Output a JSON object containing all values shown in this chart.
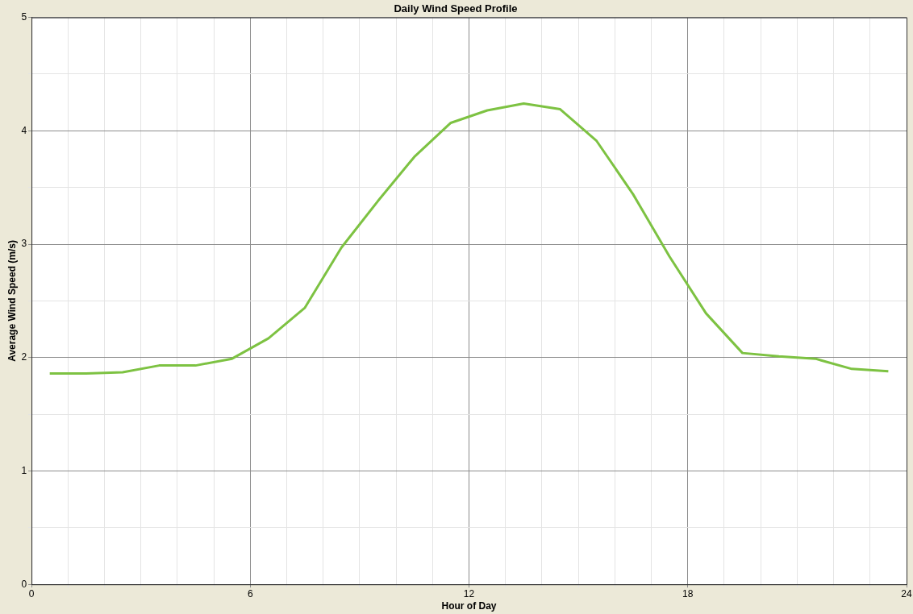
{
  "chart_data": {
    "type": "line",
    "title": "Daily Wind Speed Profile",
    "xlabel": "Hour of Day",
    "ylabel": "Average Wind Speed (m/s)",
    "x": [
      0.5,
      1.5,
      2.5,
      3.5,
      4.5,
      5.5,
      6.5,
      7.5,
      8.5,
      9.5,
      10.5,
      11.5,
      12.5,
      13.5,
      14.5,
      15.5,
      16.5,
      17.5,
      18.5,
      19.5,
      20.5,
      21.5,
      22.5,
      23.5
    ],
    "series": [
      {
        "color": "#7dc242",
        "values": [
          1.86,
          1.86,
          1.87,
          1.93,
          1.93,
          1.99,
          2.17,
          2.44,
          2.97,
          3.38,
          3.77,
          4.07,
          4.18,
          4.24,
          4.19,
          3.91,
          3.44,
          2.89,
          2.39,
          2.04,
          2.01,
          1.99,
          1.9,
          1.88
        ]
      }
    ],
    "xlim": [
      0,
      24
    ],
    "xticks": [
      0,
      {
        "value": 1,
        "label": null
      },
      {
        "value": 2,
        "label": null
      },
      {
        "value": 3,
        "label": null
      },
      {
        "value": 4,
        "label": null
      },
      {
        "value": 5,
        "label": null
      },
      6,
      {
        "value": 7,
        "label": null
      },
      {
        "value": 8,
        "label": null
      },
      {
        "value": 9,
        "label": null
      },
      {
        "value": 10,
        "label": null
      },
      {
        "value": 11,
        "label": null
      },
      12,
      {
        "value": 13,
        "label": null
      },
      {
        "value": 14,
        "label": null
      },
      {
        "value": 15,
        "label": null
      },
      {
        "value": 16,
        "label": null
      },
      {
        "value": 17,
        "label": null
      },
      18,
      {
        "value": 19,
        "label": null
      },
      {
        "value": 20,
        "label": null
      },
      {
        "value": 21,
        "label": null
      },
      {
        "value": 22,
        "label": null
      },
      {
        "value": 23,
        "label": null
      },
      24
    ],
    "ylim": [
      0,
      5
    ],
    "yticks": [
      0,
      {
        "value": 0.5,
        "label": null
      },
      1,
      {
        "value": 1.5,
        "label": null
      },
      2,
      {
        "value": 2.5,
        "label": null
      },
      3,
      {
        "value": 3.5,
        "label": null
      },
      4,
      {
        "value": 4.5,
        "label": null
      },
      5
    ],
    "grid": true,
    "legend": false,
    "marker": "none",
    "line_style": "solid"
  }
}
